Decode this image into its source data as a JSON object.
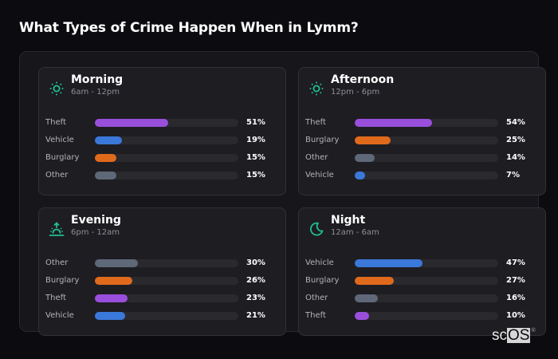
{
  "title": "What Types of Crime Happen When in Lymm?",
  "colors": {
    "accent": "#1fc08f",
    "Theft": "#9a4fdc",
    "Vehicle": "#3a78d9",
    "Burglary": "#e06a1c",
    "Other": "#5f6878"
  },
  "cards": [
    {
      "name": "Morning",
      "range": "6am - 12pm",
      "icon": "sun-icon",
      "rows": [
        {
          "label": "Theft",
          "value": 51,
          "pct": "51%"
        },
        {
          "label": "Vehicle",
          "value": 19,
          "pct": "19%"
        },
        {
          "label": "Burglary",
          "value": 15,
          "pct": "15%"
        },
        {
          "label": "Other",
          "value": 15,
          "pct": "15%"
        }
      ]
    },
    {
      "name": "Afternoon",
      "range": "12pm - 6pm",
      "icon": "sun-icon",
      "rows": [
        {
          "label": "Theft",
          "value": 54,
          "pct": "54%"
        },
        {
          "label": "Burglary",
          "value": 25,
          "pct": "25%"
        },
        {
          "label": "Other",
          "value": 14,
          "pct": "14%"
        },
        {
          "label": "Vehicle",
          "value": 7,
          "pct": "7%"
        }
      ]
    },
    {
      "name": "Evening",
      "range": "6pm - 12am",
      "icon": "sunset-icon",
      "rows": [
        {
          "label": "Other",
          "value": 30,
          "pct": "30%"
        },
        {
          "label": "Burglary",
          "value": 26,
          "pct": "26%"
        },
        {
          "label": "Theft",
          "value": 23,
          "pct": "23%"
        },
        {
          "label": "Vehicle",
          "value": 21,
          "pct": "21%"
        }
      ]
    },
    {
      "name": "Night",
      "range": "12am - 6am",
      "icon": "moon-icon",
      "rows": [
        {
          "label": "Vehicle",
          "value": 47,
          "pct": "47%"
        },
        {
          "label": "Burglary",
          "value": 27,
          "pct": "27%"
        },
        {
          "label": "Other",
          "value": 16,
          "pct": "16%"
        },
        {
          "label": "Theft",
          "value": 10,
          "pct": "10%"
        }
      ]
    }
  ],
  "logo": {
    "sc": "sc",
    "os": "OS",
    "reg": "®"
  },
  "chart_data": {
    "type": "bar",
    "title": "What Types of Crime Happen When in Lymm?",
    "orientation": "horizontal",
    "unit": "%",
    "xlim": [
      0,
      100
    ],
    "panels": [
      {
        "title": "Morning",
        "subtitle": "6am - 12pm",
        "categories": [
          "Theft",
          "Vehicle",
          "Burglary",
          "Other"
        ],
        "values": [
          51,
          19,
          15,
          15
        ]
      },
      {
        "title": "Afternoon",
        "subtitle": "12pm - 6pm",
        "categories": [
          "Theft",
          "Burglary",
          "Other",
          "Vehicle"
        ],
        "values": [
          54,
          25,
          14,
          7
        ]
      },
      {
        "title": "Evening",
        "subtitle": "6pm - 12am",
        "categories": [
          "Other",
          "Burglary",
          "Theft",
          "Vehicle"
        ],
        "values": [
          30,
          26,
          23,
          21
        ]
      },
      {
        "title": "Night",
        "subtitle": "12am - 6am",
        "categories": [
          "Vehicle",
          "Burglary",
          "Other",
          "Theft"
        ],
        "values": [
          47,
          27,
          16,
          10
        ]
      }
    ]
  }
}
